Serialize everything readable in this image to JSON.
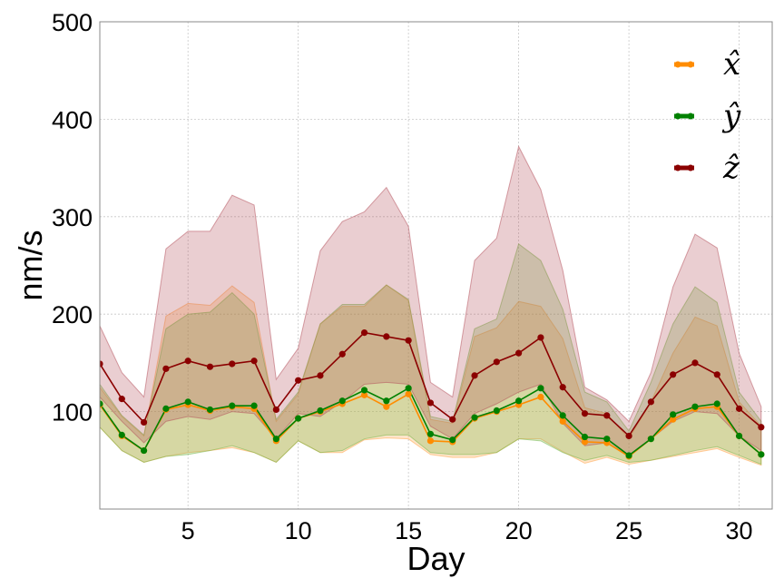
{
  "chart_data": {
    "type": "line",
    "xlabel": "Day",
    "ylabel": "nm/s",
    "xlim": [
      1,
      31.5
    ],
    "ylim": [
      0,
      500
    ],
    "xticks": [
      5,
      10,
      15,
      20,
      25,
      30
    ],
    "yticks": [
      100,
      200,
      300,
      400,
      500
    ],
    "grid": true,
    "legend_position": "top-right",
    "x": [
      1,
      2,
      3,
      4,
      5,
      6,
      7,
      8,
      9,
      10,
      11,
      12,
      13,
      14,
      15,
      16,
      17,
      18,
      19,
      20,
      21,
      22,
      23,
      24,
      25,
      26,
      27,
      28,
      29,
      30,
      31
    ],
    "series": [
      {
        "name": "x̂",
        "color": "#ff8c00",
        "band_color": "#ffa040",
        "band_opacity": 0.28,
        "values": [
          107,
          75,
          60,
          102,
          107,
          101,
          105,
          103,
          70,
          93,
          100,
          108,
          117,
          105,
          118,
          70,
          69,
          93,
          100,
          107,
          115,
          90,
          69,
          68,
          54,
          72,
          92,
          103,
          105,
          75,
          56
        ],
        "upper": [
          125,
          95,
          75,
          198,
          211,
          209,
          229,
          212,
          90,
          118,
          190,
          208,
          208,
          230,
          214,
          92,
          88,
          177,
          186,
          213,
          208,
          175,
          104,
          98,
          72,
          110,
          160,
          197,
          188,
          110,
          85
        ],
        "lower": [
          84,
          60,
          48,
          54,
          58,
          60,
          63,
          58,
          48,
          70,
          58,
          58,
          71,
          73,
          72,
          56,
          53,
          53,
          58,
          72,
          72,
          59,
          47,
          53,
          46,
          50,
          54,
          58,
          62,
          53,
          45
        ]
      },
      {
        "name": "ŷ",
        "color": "#008000",
        "band_color": "#6db33f",
        "band_opacity": 0.28,
        "values": [
          108,
          76,
          60,
          103,
          110,
          102,
          106,
          106,
          72,
          93,
          101,
          111,
          122,
          111,
          124,
          77,
          71,
          94,
          101,
          111,
          124,
          96,
          74,
          72,
          55,
          72,
          97,
          105,
          108,
          75,
          56
        ],
        "upper": [
          128,
          96,
          76,
          185,
          200,
          202,
          222,
          200,
          92,
          120,
          190,
          210,
          210,
          230,
          215,
          95,
          90,
          185,
          195,
          272,
          255,
          205,
          120,
          110,
          80,
          130,
          190,
          228,
          212,
          120,
          90
        ],
        "lower": [
          84,
          60,
          48,
          54,
          56,
          60,
          65,
          58,
          48,
          70,
          58,
          60,
          72,
          76,
          76,
          58,
          56,
          56,
          58,
          72,
          70,
          58,
          50,
          55,
          48,
          50,
          55,
          60,
          64,
          55,
          46
        ]
      },
      {
        "name": "ẑ",
        "color": "#8b0000",
        "band_color": "#b24a55",
        "band_opacity": 0.27,
        "values": [
          149,
          113,
          89,
          144,
          152,
          146,
          149,
          152,
          102,
          132,
          137,
          159,
          181,
          177,
          173,
          109,
          92,
          137,
          151,
          160,
          176,
          125,
          98,
          96,
          75,
          110,
          138,
          150,
          138,
          103,
          84
        ],
        "upper": [
          188,
          140,
          115,
          267,
          285,
          285,
          322,
          312,
          133,
          165,
          265,
          295,
          305,
          330,
          290,
          130,
          115,
          255,
          278,
          372,
          328,
          245,
          125,
          112,
          90,
          140,
          228,
          282,
          268,
          160,
          105
        ],
        "lower": [
          115,
          90,
          68,
          90,
          95,
          92,
          100,
          98,
          72,
          98,
          95,
          110,
          128,
          130,
          128,
          85,
          72,
          98,
          108,
          120,
          128,
          88,
          65,
          68,
          55,
          72,
          90,
          100,
          98,
          75,
          60
        ]
      }
    ]
  }
}
